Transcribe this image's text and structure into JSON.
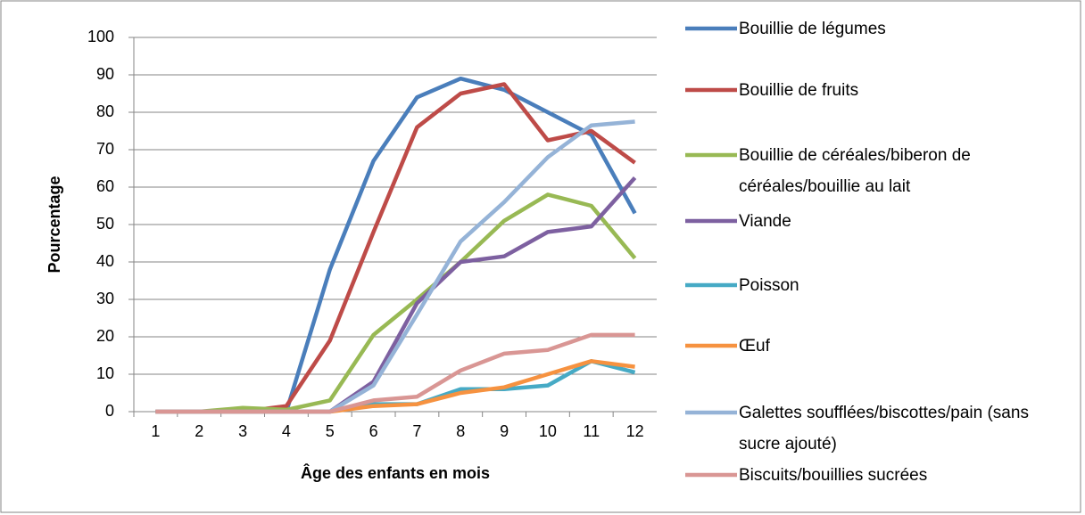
{
  "chart_data": {
    "type": "line",
    "x_label": "Âge des enfants en mois",
    "y_label": "Pourcentage",
    "categories": [
      "1",
      "2",
      "3",
      "4",
      "5",
      "6",
      "7",
      "8",
      "9",
      "10",
      "11",
      "12"
    ],
    "ylim": [
      0,
      100
    ],
    "yticks": [
      0,
      10,
      20,
      30,
      40,
      50,
      60,
      70,
      80,
      90,
      100
    ],
    "grid": true,
    "legend": "right",
    "series": [
      {
        "name": "Bouillie de légumes",
        "color": "#4a7ebb",
        "values": [
          0,
          0,
          0,
          0,
          38,
          67,
          84,
          89,
          86,
          80,
          74,
          53
        ]
      },
      {
        "name": "Bouillie de fruits",
        "color": "#be4b48",
        "values": [
          0,
          0,
          0,
          1.5,
          19,
          48,
          76,
          85,
          87.5,
          72.5,
          75,
          66.5
        ]
      },
      {
        "name": "Bouillie de céréales/biberon de céréales/bouillie au lait",
        "color": "#98b954",
        "values": [
          0,
          0,
          1,
          0.5,
          3,
          20.5,
          30,
          40,
          51,
          58,
          55,
          41
        ]
      },
      {
        "name": "Viande",
        "color": "#7d60a0",
        "values": [
          0,
          0,
          0,
          0,
          0,
          8,
          29,
          40,
          41.5,
          48,
          49.5,
          62.5
        ]
      },
      {
        "name": "Poisson",
        "color": "#46aac5",
        "values": [
          0,
          0,
          0,
          0,
          0,
          2,
          2,
          6,
          6,
          7,
          13.5,
          10.5
        ]
      },
      {
        "name": "Œuf",
        "color": "#f69240",
        "values": [
          0,
          0,
          0,
          0,
          0,
          1.5,
          2,
          5,
          6.5,
          10,
          13.5,
          12
        ]
      },
      {
        "name": "Galettes soufflées/biscottes/pain (sans sucre ajouté)",
        "color": "#95b3d7",
        "values": [
          0,
          0,
          0,
          0,
          0,
          7,
          26,
          45.5,
          56,
          68,
          76.5,
          77.5
        ]
      },
      {
        "name": "Biscuits/bouillies sucrées",
        "color": "#d99694",
        "values": [
          0,
          0,
          0,
          0,
          0,
          3,
          4,
          11,
          15.5,
          16.5,
          20.5,
          20.5
        ]
      }
    ]
  }
}
